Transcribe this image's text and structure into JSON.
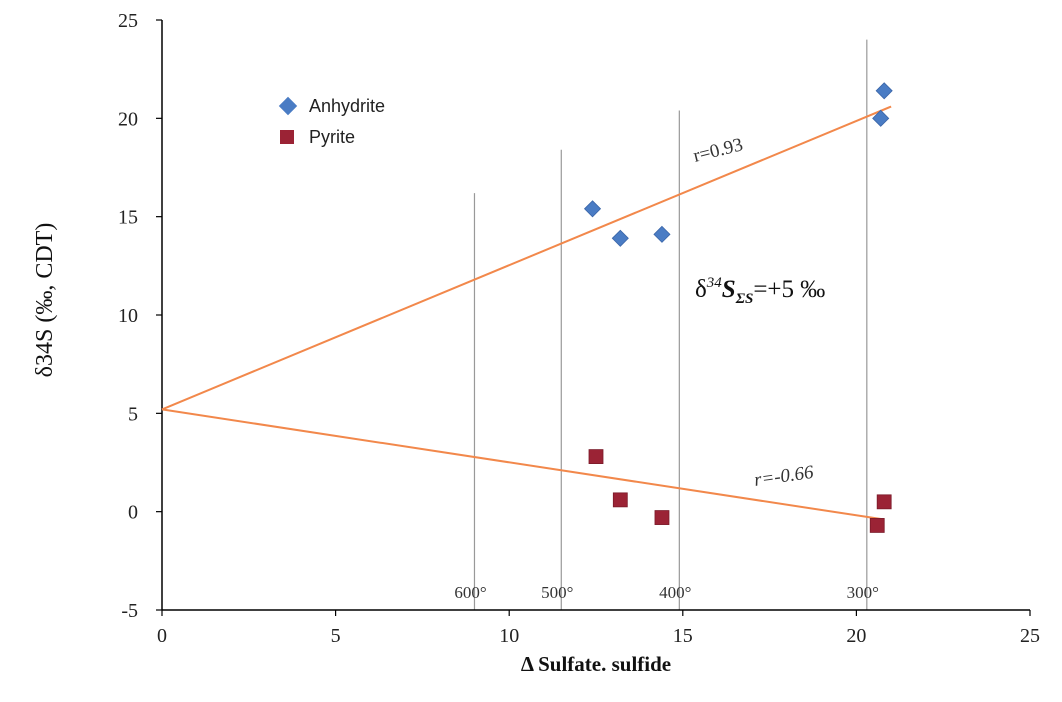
{
  "chart_data": {
    "type": "scatter",
    "xlabel": "Δ Sulfate. sulfide",
    "ylabel": "δ34S (‰, CDT)",
    "xlim": [
      0,
      25
    ],
    "ylim": [
      -5,
      25
    ],
    "x_ticks": [
      0,
      5,
      10,
      15,
      20,
      25
    ],
    "y_ticks": [
      -5,
      0,
      5,
      10,
      15,
      20,
      25
    ],
    "legend_position": "top-left",
    "colors": {
      "anhydrite": "#4a7cc4",
      "pyrite": "#9b2335",
      "trend": "#f2884b",
      "isotherm": "#999999"
    },
    "series": [
      {
        "name": "Anhydrite",
        "marker": "diamond",
        "points": [
          [
            12.4,
            15.4
          ],
          [
            13.2,
            13.9
          ],
          [
            14.4,
            14.1
          ],
          [
            20.7,
            20.0
          ],
          [
            20.8,
            21.4
          ]
        ]
      },
      {
        "name": "Pyrite",
        "marker": "square",
        "points": [
          [
            12.5,
            2.8
          ],
          [
            13.2,
            0.6
          ],
          [
            14.4,
            -0.3
          ],
          [
            20.6,
            -0.7
          ],
          [
            20.8,
            0.5
          ]
        ]
      }
    ],
    "trend_lines": [
      {
        "label": "r=0.93",
        "from": [
          0,
          5.2
        ],
        "to": [
          21.0,
          20.6
        ]
      },
      {
        "label": "r=-0.66",
        "from": [
          0,
          5.2
        ],
        "to": [
          20.8,
          -0.4
        ]
      }
    ],
    "isotherms": [
      {
        "label": "600°",
        "x": 9.0,
        "top": 16.2
      },
      {
        "label": "500°",
        "x": 11.5,
        "top": 18.4
      },
      {
        "label": "400°",
        "x": 14.9,
        "top": 20.4
      },
      {
        "label": "300°",
        "x": 20.3,
        "top": 24.0
      }
    ],
    "annotation": {
      "delta": "δ",
      "sup": "34",
      "s": "S",
      "sub": "ΣS",
      "rest": "=+5 ‰"
    }
  }
}
